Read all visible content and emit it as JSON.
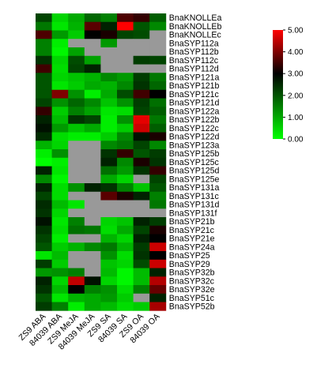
{
  "chart_data": {
    "type": "heatmap",
    "title": "",
    "xlabel": "",
    "ylabel": "",
    "columns": [
      "ZS9 ABA",
      "84039 ABA",
      "ZS9 MeJA",
      "84039 MeJA",
      "ZS9 SA",
      "84039 SA",
      "ZS9 OA",
      "84039 OA"
    ],
    "rows": [
      "BnaKNOLLEa",
      "BnaKNOLLEb",
      "BnaKNOLLEc",
      "BnaSYP112a",
      "BnaSYP112b",
      "BnaSYP112c",
      "BnaSYP112d",
      "BnaSYP121a",
      "BnaSYP121b",
      "BnaSYP121c",
      "BnaSYP121d",
      "BnaSYP122a",
      "BnaSYP122b",
      "BnaSYP122c",
      "BnaSYP122d",
      "BnaSYP123a",
      "BnaSYP125b",
      "BnaSYP125c",
      "BnaSYP125d",
      "BnaSYP125e",
      "BnaSYP131a",
      "BnaSYP131c",
      "BnaSYP131d",
      "BnaSYP131f",
      "BnaSYP21b",
      "BnaSYP21c",
      "BnaSYP21e",
      "BnaSYP24a",
      "BnaSYP25",
      "BnaSYP29",
      "BnaSYP32b",
      "BnaSYP32c",
      "BnaSYP32e",
      "BnaSYP51c",
      "BnaSYP52b"
    ],
    "values": [
      [
        2.2,
        0.5,
        1.0,
        1.8,
        1.5,
        3.6,
        3.4,
        1.9
      ],
      [
        1.6,
        0.3,
        0.9,
        3.7,
        2.6,
        5.0,
        2.0,
        1.4
      ],
      [
        3.6,
        1.2,
        0.6,
        3.0,
        3.2,
        2.2,
        2.1,
        null
      ],
      [
        1.5,
        0.2,
        null,
        null,
        1.2,
        null,
        null,
        null
      ],
      [
        1.5,
        0.1,
        1.1,
        null,
        null,
        null,
        null,
        null
      ],
      [
        2.4,
        0.5,
        2.1,
        1.1,
        null,
        null,
        2.3,
        2.2
      ],
      [
        3.5,
        0.4,
        2.2,
        2.6,
        null,
        null,
        null,
        null
      ],
      [
        2.0,
        0.5,
        0.7,
        0.9,
        1.4,
        1.2,
        2.3,
        1.6
      ],
      [
        2.0,
        0.3,
        0.6,
        1.0,
        0.9,
        1.4,
        2.4,
        1.8
      ],
      [
        2.0,
        4.0,
        1.3,
        0.2,
        1.0,
        2.1,
        3.5,
        3.0
      ],
      [
        2.2,
        1.3,
        1.8,
        1.4,
        0.7,
        1.3,
        2.3,
        1.7
      ],
      [
        3.4,
        0.6,
        1.5,
        1.1,
        0.3,
        0.4,
        2.2,
        1.9
      ],
      [
        2.6,
        0.8,
        2.4,
        2.2,
        0.2,
        1.3,
        4.8,
        1.6
      ],
      [
        2.8,
        1.2,
        0.7,
        1.0,
        0.2,
        0.6,
        4.6,
        1.9
      ],
      [
        2.5,
        0.4,
        0.2,
        0.2,
        0.6,
        1.4,
        2.8,
        3.2
      ],
      [
        0.9,
        0.5,
        null,
        null,
        1.4,
        1.6,
        2.2,
        1.4
      ],
      [
        0.2,
        1.3,
        null,
        null,
        2.4,
        3.4,
        2.0,
        2.3
      ],
      [
        0.0,
        0.2,
        null,
        null,
        2.6,
        1.4,
        3.2,
        2.4
      ],
      [
        2.6,
        0.3,
        null,
        null,
        1.7,
        1.2,
        2.4,
        3.4
      ],
      [
        1.4,
        0.1,
        null,
        null,
        1.0,
        0.5,
        null,
        2.2
      ],
      [
        2.6,
        0.4,
        1.3,
        2.6,
        2.4,
        1.5,
        0.7,
        2.0
      ],
      [
        2.2,
        0.4,
        null,
        null,
        3.7,
        3.2,
        2.6,
        1.5
      ],
      [
        2.5,
        0.8,
        0.3,
        null,
        null,
        null,
        null,
        1.6
      ],
      [
        2.4,
        0.5,
        null,
        null,
        null,
        null,
        null,
        null
      ],
      [
        2.8,
        0.3,
        1.5,
        null,
        0.5,
        0.7,
        2.6,
        2.3
      ],
      [
        2.4,
        0.4,
        1.7,
        1.6,
        0.4,
        1.0,
        2.2,
        3.2
      ],
      [
        2.2,
        0.2,
        null,
        null,
        0.9,
        0.5,
        2.6,
        3.0
      ],
      [
        2.0,
        0.6,
        0.9,
        1.4,
        1.6,
        0.9,
        2.3,
        4.6
      ],
      [
        0.3,
        0.8,
        null,
        null,
        1.3,
        0.4,
        2.4,
        3.0
      ],
      [
        2.3,
        0.6,
        null,
        null,
        0.7,
        0.5,
        2.1,
        4.6
      ],
      [
        1.2,
        1.3,
        1.5,
        null,
        0.8,
        0.1,
        0.8,
        2.6
      ],
      [
        2.6,
        0.5,
        4.5,
        2.8,
        0.5,
        0.1,
        0.8,
        4.4
      ],
      [
        2.4,
        0.8,
        3.0,
        1.5,
        1.3,
        0.4,
        1.5,
        3.8
      ],
      [
        2.0,
        0.3,
        0.9,
        1.0,
        1.2,
        0.6,
        null,
        2.6
      ],
      [
        2.3,
        1.5,
        0.2,
        1.0,
        0.8,
        0.4,
        0.6,
        4.3
      ]
    ],
    "missing_color": "#999999",
    "colorbar": {
      "min": 0.0,
      "max": 5.0,
      "ticks": [
        "0.00",
        "1.00",
        "2.00",
        "3.00",
        "4.00",
        "5.00"
      ],
      "colors": {
        "low": "#00ff00",
        "mid": "#000000",
        "high": "#ff0000"
      }
    },
    "grid": false,
    "legend": "colorbar top-right"
  }
}
